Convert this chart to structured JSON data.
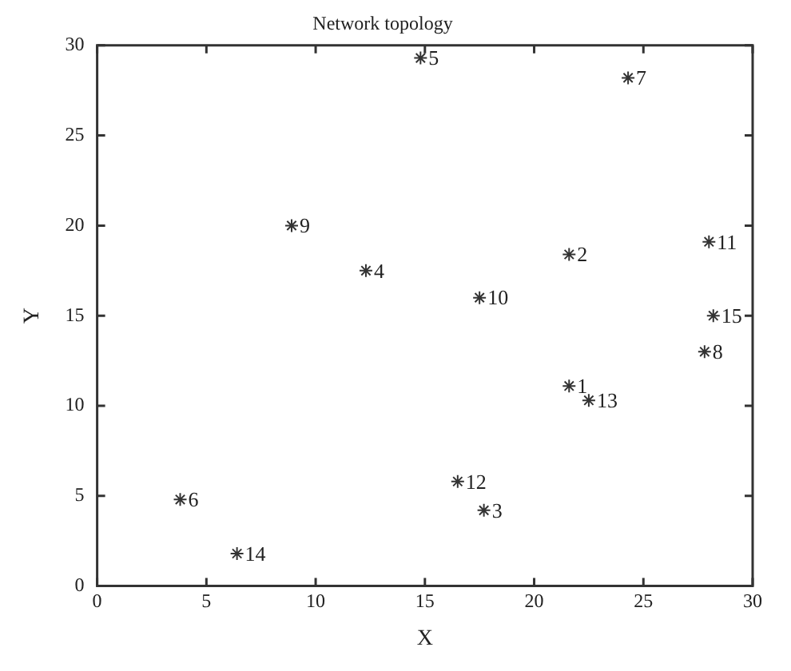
{
  "chart_data": {
    "type": "scatter",
    "title": "Network topology",
    "xlabel": "X",
    "ylabel": "Y",
    "xlim": [
      0,
      30
    ],
    "xticks": [
      0,
      5,
      10,
      15,
      20,
      25,
      30
    ],
    "ylim": [
      0,
      30
    ],
    "yticks": [
      0,
      5,
      10,
      15,
      20,
      25,
      30
    ],
    "grid": false,
    "legend": false,
    "marker": "cross",
    "series": [
      {
        "color": "#333333",
        "x": [
          21.6,
          21.6,
          17.7,
          12.3,
          14.8,
          3.8,
          24.3,
          27.8,
          8.9,
          17.5,
          28.0,
          16.5,
          22.5,
          6.4,
          28.2
        ],
        "values": [
          11.1,
          18.4,
          4.2,
          17.5,
          29.3,
          4.8,
          28.2,
          13.0,
          20.0,
          16.0,
          19.1,
          5.8,
          10.3,
          1.8,
          15.0
        ]
      }
    ],
    "annotations": [
      {
        "text": "1",
        "x": 21.6,
        "y": 11.1
      },
      {
        "text": "2",
        "x": 21.6,
        "y": 18.4
      },
      {
        "text": "3",
        "x": 17.7,
        "y": 4.2
      },
      {
        "text": "4",
        "x": 12.3,
        "y": 17.5
      },
      {
        "text": "5",
        "x": 14.8,
        "y": 29.3
      },
      {
        "text": "6",
        "x": 3.8,
        "y": 4.8
      },
      {
        "text": "7",
        "x": 24.3,
        "y": 28.2
      },
      {
        "text": "8",
        "x": 27.8,
        "y": 13.0
      },
      {
        "text": "9",
        "x": 8.9,
        "y": 20.0
      },
      {
        "text": "10",
        "x": 17.5,
        "y": 16.0
      },
      {
        "text": "11",
        "x": 28.0,
        "y": 19.1
      },
      {
        "text": "12",
        "x": 16.5,
        "y": 5.8
      },
      {
        "text": "13",
        "x": 22.5,
        "y": 10.3
      },
      {
        "text": "14",
        "x": 6.4,
        "y": 1.8
      },
      {
        "text": "15",
        "x": 28.2,
        "y": 15.0
      }
    ]
  }
}
